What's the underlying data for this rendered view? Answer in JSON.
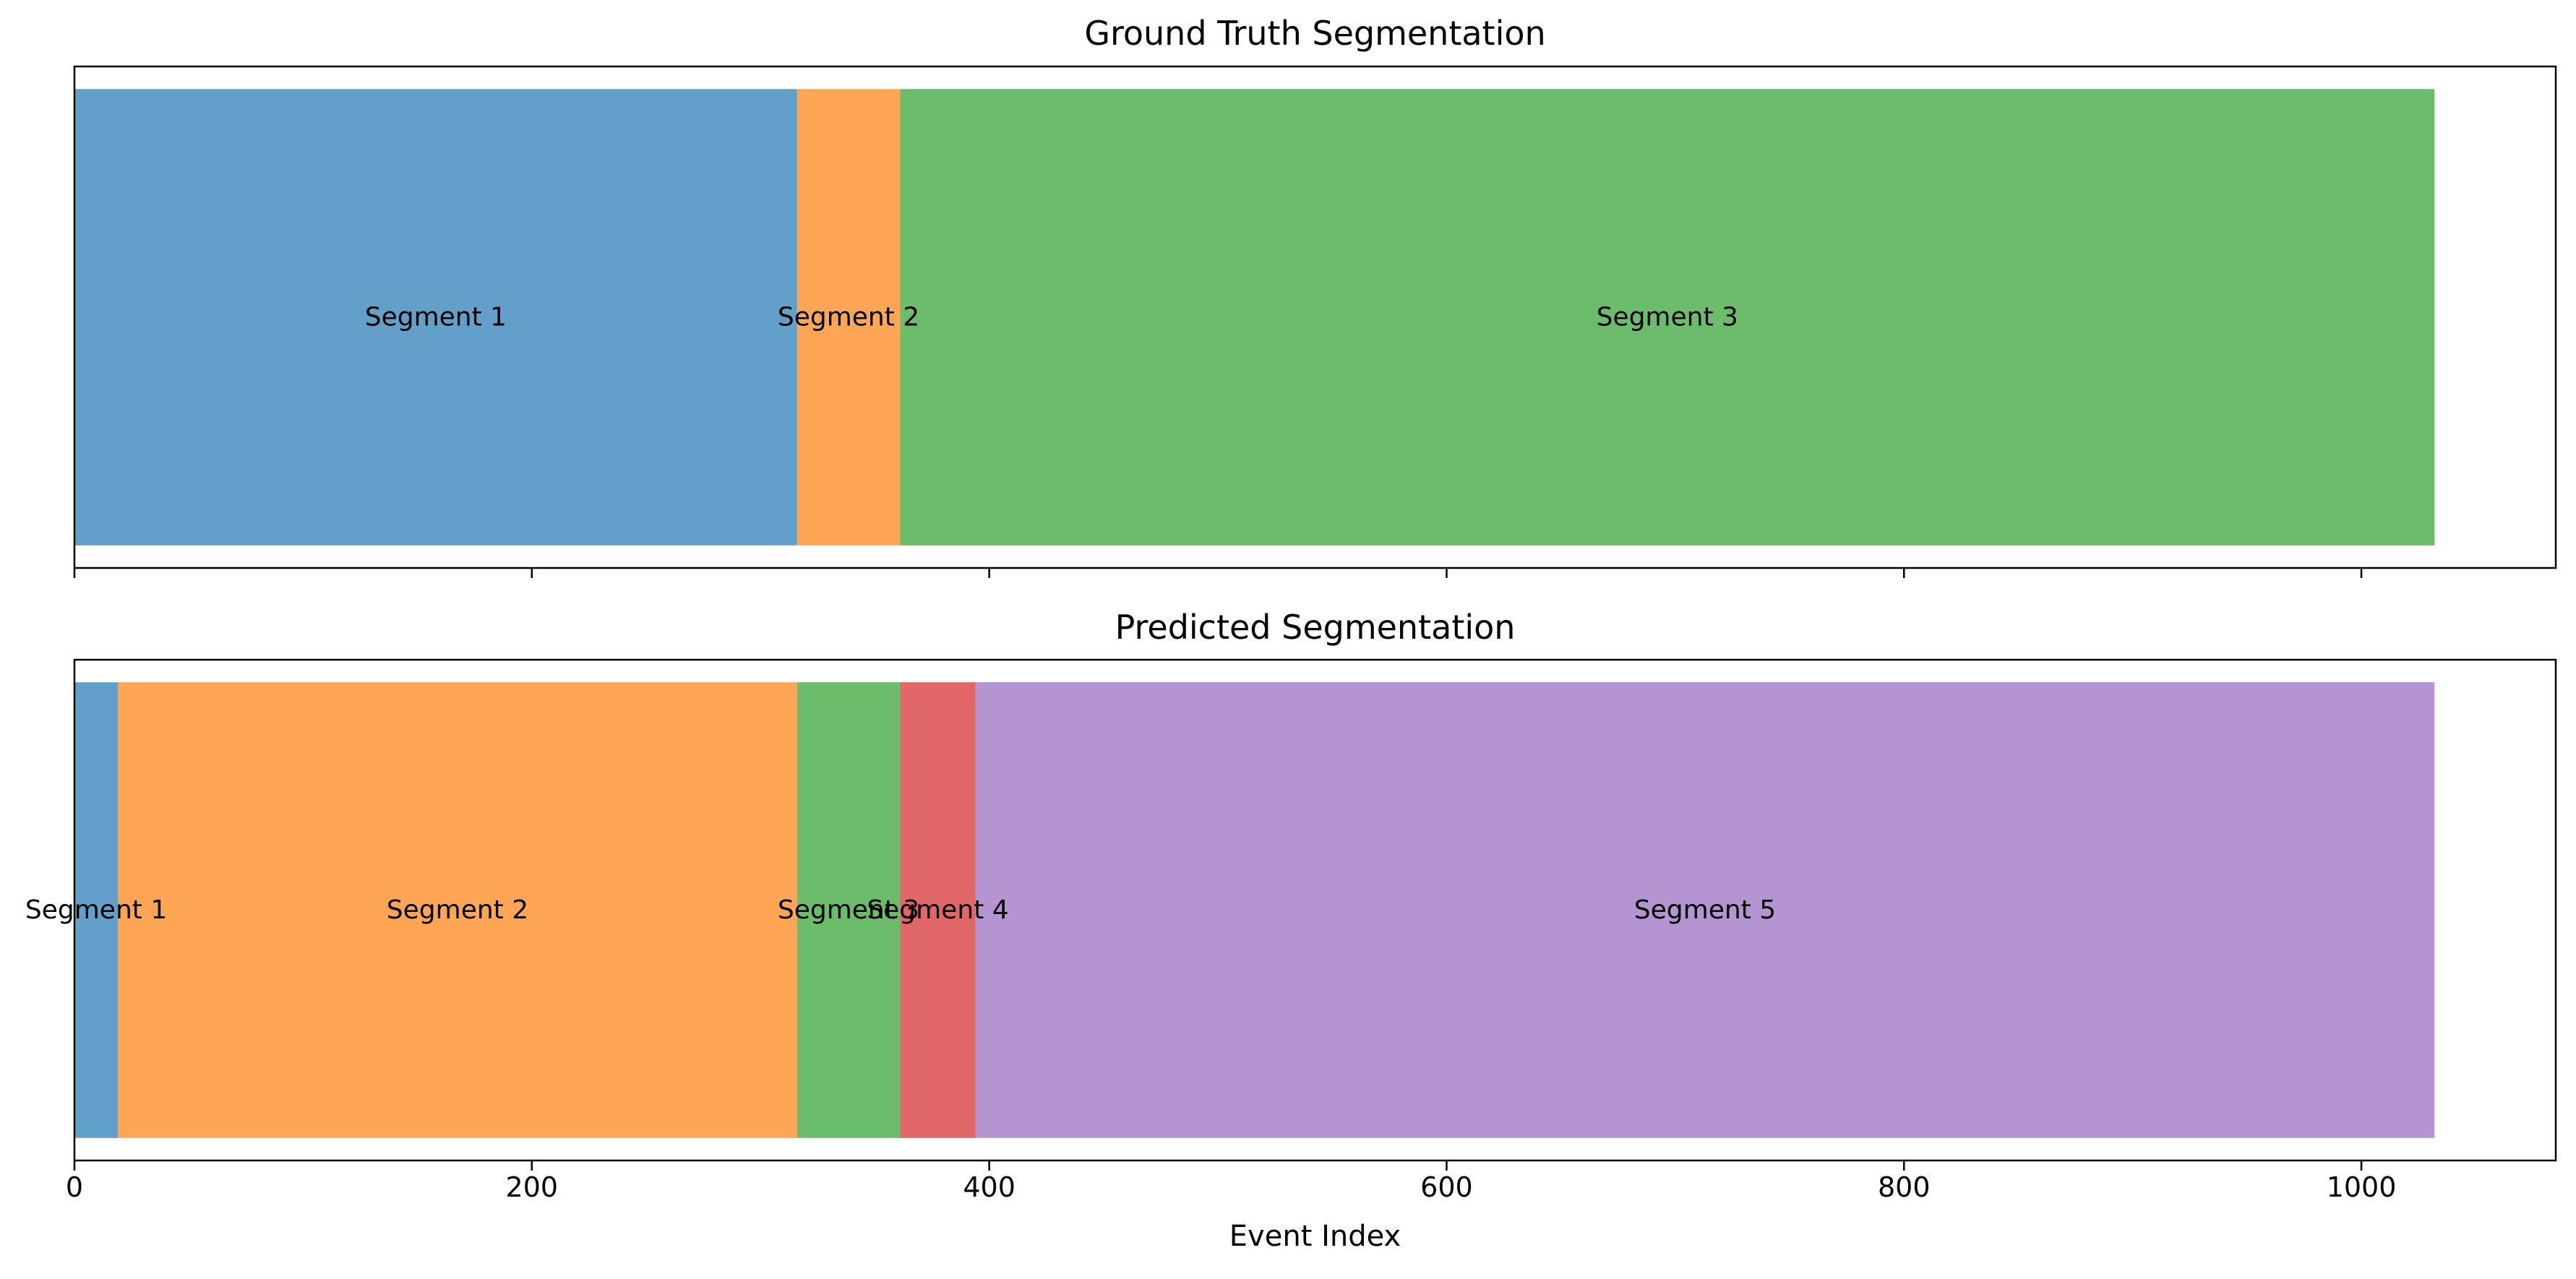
{
  "chart_data": [
    {
      "type": "bar",
      "orientation": "horizontal-stacked",
      "title": "Ground Truth Segmentation",
      "xlabel": "",
      "ylabel": "",
      "xlim": [
        0,
        1085
      ],
      "grid": false,
      "segments": [
        {
          "label": "Segment 1",
          "start": 0,
          "end": 316,
          "color": "#1f77b4"
        },
        {
          "label": "Segment 2",
          "start": 316,
          "end": 361,
          "color": "#ff7f0e"
        },
        {
          "label": "Segment 3",
          "start": 361,
          "end": 1032,
          "color": "#2ca02c"
        }
      ],
      "xticks": [
        0,
        200,
        400,
        600,
        800,
        1000
      ],
      "show_tick_labels": false
    },
    {
      "type": "bar",
      "orientation": "horizontal-stacked",
      "title": "Predicted Segmentation",
      "xlabel": "Event Index",
      "ylabel": "",
      "xlim": [
        0,
        1085
      ],
      "grid": false,
      "segments": [
        {
          "label": "Segment 1",
          "start": 0,
          "end": 19,
          "color": "#1f77b4"
        },
        {
          "label": "Segment 2",
          "start": 19,
          "end": 316,
          "color": "#ff7f0e"
        },
        {
          "label": "Segment 3",
          "start": 316,
          "end": 361,
          "color": "#2ca02c"
        },
        {
          "label": "Segment 4",
          "start": 361,
          "end": 394,
          "color": "#d62728"
        },
        {
          "label": "Segment 5",
          "start": 394,
          "end": 1032,
          "color": "#9467bd"
        }
      ],
      "xticks": [
        0,
        200,
        400,
        600,
        800,
        1000
      ],
      "tick_labels": [
        "0",
        "200",
        "400",
        "600",
        "800",
        "1000"
      ],
      "show_tick_labels": true
    }
  ],
  "style": {
    "segment_opacity": 0.7,
    "axes_color": "#000000"
  }
}
